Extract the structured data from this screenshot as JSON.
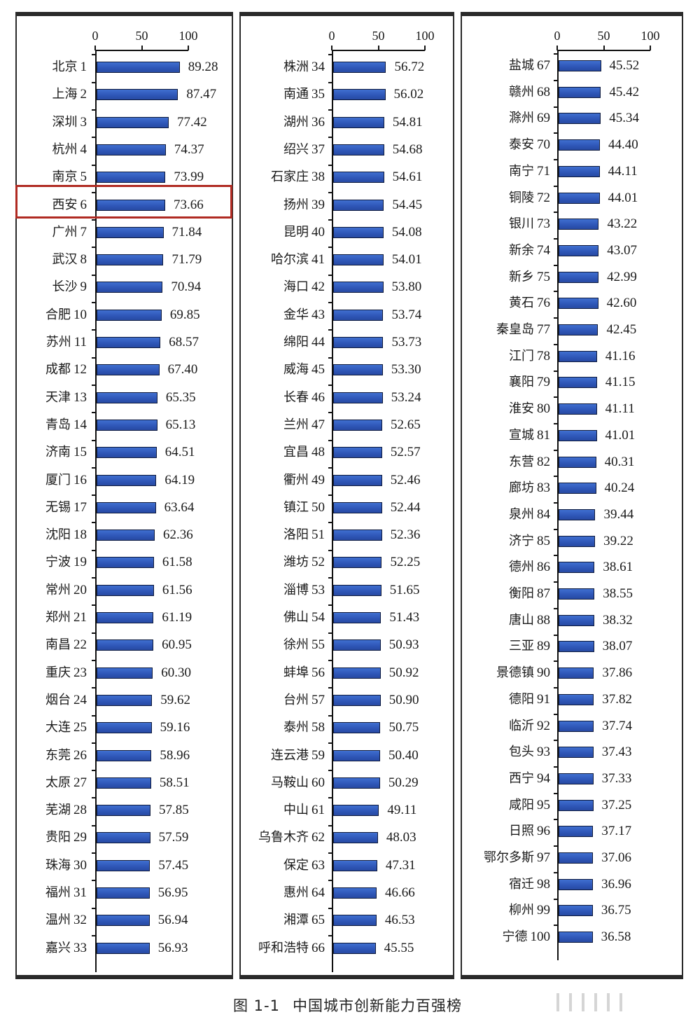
{
  "caption": {
    "figure_number": "图 1-1",
    "title": "中国城市创新能力百强榜"
  },
  "colors": {
    "bar_fill": "#2f57b8",
    "bar_border": "#0e1a3c",
    "highlight_border": "#b02a22",
    "panel_border": "#2a2a2a"
  },
  "highlight": {
    "city": "西安",
    "rank": 6
  },
  "chart_data": [
    {
      "type": "bar",
      "orientation": "horizontal",
      "title": "中国城市创新能力百强榜 (1-33)",
      "xlabel": "",
      "ylabel": "",
      "xlim": [
        0,
        100
      ],
      "x_ticks": [
        "0",
        "50",
        "100"
      ],
      "grid": false,
      "categories": [
        "北京 1",
        "上海 2",
        "深圳 3",
        "杭州 4",
        "南京 5",
        "西安 6",
        "广州 7",
        "武汉 8",
        "长沙 9",
        "合肥 10",
        "苏州 11",
        "成都 12",
        "天津 13",
        "青岛 14",
        "济南 15",
        "厦门 16",
        "无锡 17",
        "沈阳 18",
        "宁波 19",
        "常州 20",
        "郑州 21",
        "南昌 22",
        "重庆 23",
        "烟台 24",
        "大连 25",
        "东莞 26",
        "太原 27",
        "芜湖 28",
        "贵阳 29",
        "珠海 30",
        "福州 31",
        "温州 32",
        "嘉兴 33"
      ],
      "values": [
        89.28,
        87.47,
        77.42,
        74.37,
        73.99,
        73.66,
        71.84,
        71.79,
        70.94,
        69.85,
        68.57,
        67.4,
        65.35,
        65.13,
        64.51,
        64.19,
        63.64,
        62.36,
        61.58,
        61.56,
        61.19,
        60.95,
        60.3,
        59.62,
        59.16,
        58.96,
        58.51,
        57.85,
        57.59,
        57.45,
        56.95,
        56.94,
        56.93
      ],
      "value_labels": [
        "89.28",
        "87.47",
        "77.42",
        "74.37",
        "73.99",
        "73.66",
        "71.84",
        "71.79",
        "70.94",
        "69.85",
        "68.57",
        "67.40",
        "65.35",
        "65.13",
        "64.51",
        "64.19",
        "63.64",
        "62.36",
        "61.58",
        "61.56",
        "61.19",
        "60.95",
        "60.30",
        "59.62",
        "59.16",
        "58.96",
        "58.51",
        "57.85",
        "57.59",
        "57.45",
        "56.95",
        "56.94",
        "56.93"
      ],
      "cities": [
        "北京",
        "上海",
        "深圳",
        "杭州",
        "南京",
        "西安",
        "广州",
        "武汉",
        "长沙",
        "合肥",
        "苏州",
        "成都",
        "天津",
        "青岛",
        "济南",
        "厦门",
        "无锡",
        "沈阳",
        "宁波",
        "常州",
        "郑州",
        "南昌",
        "重庆",
        "烟台",
        "大连",
        "东莞",
        "太原",
        "芜湖",
        "贵阳",
        "珠海",
        "福州",
        "温州",
        "嘉兴"
      ],
      "ranks": [
        "1",
        "2",
        "3",
        "4",
        "5",
        "6",
        "7",
        "8",
        "9",
        "10",
        "11",
        "12",
        "13",
        "14",
        "15",
        "16",
        "17",
        "18",
        "19",
        "20",
        "21",
        "22",
        "23",
        "24",
        "25",
        "26",
        "27",
        "28",
        "29",
        "30",
        "31",
        "32",
        "33"
      ]
    },
    {
      "type": "bar",
      "orientation": "horizontal",
      "title": "中国城市创新能力百强榜 (34-66)",
      "xlabel": "",
      "ylabel": "",
      "xlim": [
        0,
        100
      ],
      "x_ticks": [
        "0",
        "50",
        "100"
      ],
      "grid": false,
      "categories": [
        "株洲 34",
        "南通 35",
        "湖州 36",
        "绍兴 37",
        "石家庄 38",
        "扬州 39",
        "昆明 40",
        "哈尔滨 41",
        "海口 42",
        "金华 43",
        "绵阳 44",
        "威海 45",
        "长春 46",
        "兰州 47",
        "宜昌 48",
        "衢州 49",
        "镇江 50",
        "洛阳 51",
        "潍坊 52",
        "淄博 53",
        "佛山 54",
        "徐州 55",
        "蚌埠 56",
        "台州 57",
        "泰州 58",
        "连云港 59",
        "马鞍山 60",
        "中山 61",
        "乌鲁木齐 62",
        "保定 63",
        "惠州 64",
        "湘潭 65",
        "呼和浩特 66"
      ],
      "values": [
        56.72,
        56.02,
        54.81,
        54.68,
        54.61,
        54.45,
        54.08,
        54.01,
        53.8,
        53.74,
        53.73,
        53.3,
        53.24,
        52.65,
        52.57,
        52.46,
        52.44,
        52.36,
        52.25,
        51.65,
        51.43,
        50.93,
        50.92,
        50.9,
        50.75,
        50.4,
        50.29,
        49.11,
        48.03,
        47.31,
        46.66,
        46.53,
        45.55
      ],
      "value_labels": [
        "56.72",
        "56.02",
        "54.81",
        "54.68",
        "54.61",
        "54.45",
        "54.08",
        "54.01",
        "53.80",
        "53.74",
        "53.73",
        "53.30",
        "53.24",
        "52.65",
        "52.57",
        "52.46",
        "52.44",
        "52.36",
        "52.25",
        "51.65",
        "51.43",
        "50.93",
        "50.92",
        "50.90",
        "50.75",
        "50.40",
        "50.29",
        "49.11",
        "48.03",
        "47.31",
        "46.66",
        "46.53",
        "45.55"
      ],
      "cities": [
        "株洲",
        "南通",
        "湖州",
        "绍兴",
        "石家庄",
        "扬州",
        "昆明",
        "哈尔滨",
        "海口",
        "金华",
        "绵阳",
        "威海",
        "长春",
        "兰州",
        "宜昌",
        "衢州",
        "镇江",
        "洛阳",
        "潍坊",
        "淄博",
        "佛山",
        "徐州",
        "蚌埠",
        "台州",
        "泰州",
        "连云港",
        "马鞍山",
        "中山",
        "乌鲁木齐",
        "保定",
        "惠州",
        "湘潭",
        "呼和浩特"
      ],
      "ranks": [
        "34",
        "35",
        "36",
        "37",
        "38",
        "39",
        "40",
        "41",
        "42",
        "43",
        "44",
        "45",
        "46",
        "47",
        "48",
        "49",
        "50",
        "51",
        "52",
        "53",
        "54",
        "55",
        "56",
        "57",
        "58",
        "59",
        "60",
        "61",
        "62",
        "63",
        "64",
        "65",
        "66"
      ]
    },
    {
      "type": "bar",
      "orientation": "horizontal",
      "title": "中国城市创新能力百强榜 (67-100)",
      "xlabel": "",
      "ylabel": "",
      "xlim": [
        0,
        100
      ],
      "x_ticks": [
        "0",
        "50",
        "100"
      ],
      "grid": false,
      "categories": [
        "盐城 67",
        "赣州 68",
        "滁州 69",
        "泰安 70",
        "南宁 71",
        "铜陵 72",
        "银川 73",
        "新余 74",
        "新乡 75",
        "黄石 76",
        "秦皇岛 77",
        "江门 78",
        "襄阳 79",
        "淮安 80",
        "宣城 81",
        "东营 82",
        "廊坊 83",
        "泉州 84",
        "济宁 85",
        "德州 86",
        "衡阳 87",
        "唐山 88",
        "三亚 89",
        "景德镇 90",
        "德阳 91",
        "临沂 92",
        "包头 93",
        "西宁 94",
        "咸阳 95",
        "日照 96",
        "鄂尔多斯 97",
        "宿迁 98",
        "柳州 99",
        "宁德 100"
      ],
      "values": [
        45.52,
        45.42,
        45.34,
        44.4,
        44.11,
        44.01,
        43.22,
        43.07,
        42.99,
        42.6,
        42.45,
        41.16,
        41.15,
        41.11,
        41.01,
        40.31,
        40.24,
        39.44,
        39.22,
        38.61,
        38.55,
        38.32,
        38.07,
        37.86,
        37.82,
        37.74,
        37.43,
        37.33,
        37.25,
        37.17,
        37.06,
        36.96,
        36.75,
        36.58
      ],
      "value_labels": [
        "45.52",
        "45.42",
        "45.34",
        "44.40",
        "44.11",
        "44.01",
        "43.22",
        "43.07",
        "42.99",
        "42.60",
        "42.45",
        "41.16",
        "41.15",
        "41.11",
        "41.01",
        "40.31",
        "40.24",
        "39.44",
        "39.22",
        "38.61",
        "38.55",
        "38.32",
        "38.07",
        "37.86",
        "37.82",
        "37.74",
        "37.43",
        "37.33",
        "37.25",
        "37.17",
        "37.06",
        "36.96",
        "36.75",
        "36.58"
      ],
      "cities": [
        "盐城",
        "赣州",
        "滁州",
        "泰安",
        "南宁",
        "铜陵",
        "银川",
        "新余",
        "新乡",
        "黄石",
        "秦皇岛",
        "江门",
        "襄阳",
        "淮安",
        "宣城",
        "东营",
        "廊坊",
        "泉州",
        "济宁",
        "德州",
        "衡阳",
        "唐山",
        "三亚",
        "景德镇",
        "德阳",
        "临沂",
        "包头",
        "西宁",
        "咸阳",
        "日照",
        "鄂尔多斯",
        "宿迁",
        "柳州",
        "宁德"
      ],
      "ranks": [
        "67",
        "68",
        "69",
        "70",
        "71",
        "72",
        "73",
        "74",
        "75",
        "76",
        "77",
        "78",
        "79",
        "80",
        "81",
        "82",
        "83",
        "84",
        "85",
        "86",
        "87",
        "88",
        "89",
        "90",
        "91",
        "92",
        "93",
        "94",
        "95",
        "96",
        "97",
        "98",
        "99",
        "100"
      ]
    }
  ]
}
